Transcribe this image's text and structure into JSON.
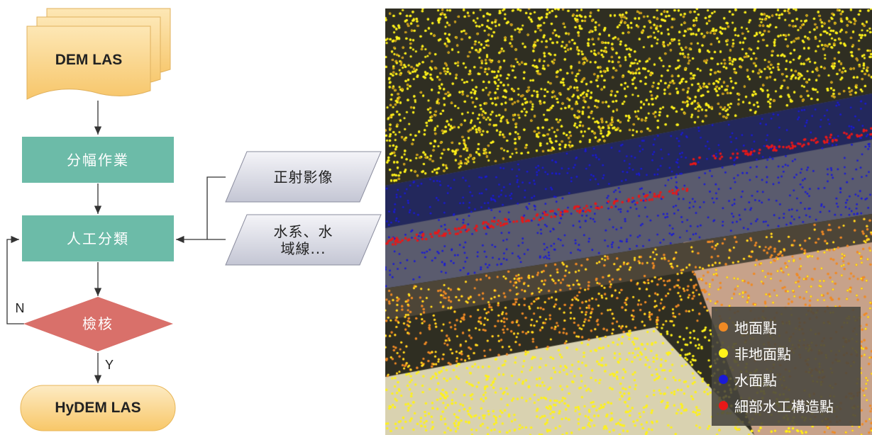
{
  "flowchart": {
    "input_label": "DEM LAS",
    "step1_label": "分幅作業",
    "step2_label": "人工分類",
    "data_in1_label": "正射影像",
    "data_in2_label": "水系、水\n域線...",
    "decision_label": "檢核",
    "no_label": "N",
    "yes_label": "Y",
    "output_label": "HyDEM LAS"
  },
  "map": {
    "legend": [
      {
        "label": "地面點",
        "color": "#f08a24"
      },
      {
        "label": "非地面點",
        "color": "#fff21a"
      },
      {
        "label": "水面點",
        "color": "#1a1ad6"
      },
      {
        "label": "細部水工構造點",
        "color": "#e81818"
      }
    ]
  }
}
